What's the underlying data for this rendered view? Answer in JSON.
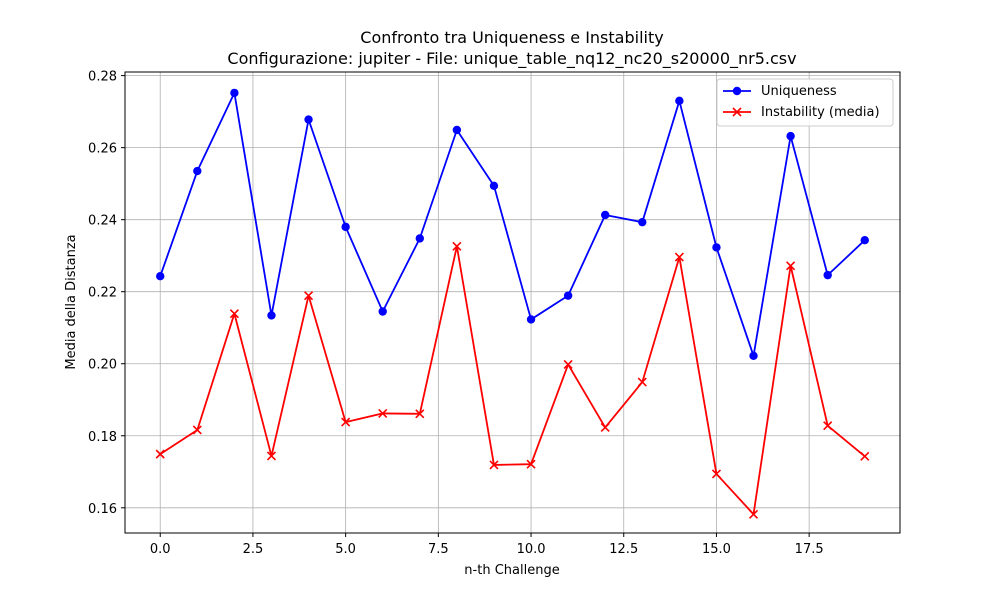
{
  "chart_data": {
    "type": "line",
    "title": "Confronto tra Uniqueness e Instability",
    "subtitle": "Configurazione: jupiter - File: unique_table_nq12_nc20_s20000_nr5.csv",
    "xlabel": "n-th Challenge",
    "ylabel": "Media della Distanza",
    "xlim": [
      -0.95,
      19.95
    ],
    "ylim": [
      0.153,
      0.281
    ],
    "xticks": [
      0.0,
      2.5,
      5.0,
      7.5,
      10.0,
      12.5,
      15.0,
      17.5
    ],
    "xtick_labels": [
      "0.0",
      "2.5",
      "5.0",
      "7.5",
      "10.0",
      "12.5",
      "15.0",
      "17.5"
    ],
    "yticks": [
      0.16,
      0.18,
      0.2,
      0.22,
      0.24,
      0.26,
      0.28
    ],
    "ytick_labels": [
      "0.16",
      "0.18",
      "0.20",
      "0.22",
      "0.24",
      "0.26",
      "0.28"
    ],
    "grid": true,
    "legend_position": "top-right",
    "x": [
      0,
      1,
      2,
      3,
      4,
      5,
      6,
      7,
      8,
      9,
      10,
      11,
      12,
      13,
      14,
      15,
      16,
      17,
      18,
      19
    ],
    "series": [
      {
        "name": "Uniqueness",
        "color": "#0000ff",
        "marker": "circle",
        "values": [
          0.2243,
          0.2535,
          0.2752,
          0.2134,
          0.2678,
          0.238,
          0.2145,
          0.2348,
          0.2649,
          0.2494,
          0.2123,
          0.2189,
          0.2413,
          0.2393,
          0.273,
          0.2323,
          0.2022,
          0.2632,
          0.2246,
          0.2343
        ]
      },
      {
        "name": "Instability (media)",
        "color": "#ff0000",
        "marker": "x",
        "values": [
          0.1749,
          0.1816,
          0.2139,
          0.1744,
          0.2189,
          0.1838,
          0.1862,
          0.1861,
          0.2326,
          0.1719,
          0.1721,
          0.1998,
          0.1823,
          0.1949,
          0.2296,
          0.1694,
          0.1582,
          0.2272,
          0.1828,
          0.1743
        ]
      }
    ]
  }
}
